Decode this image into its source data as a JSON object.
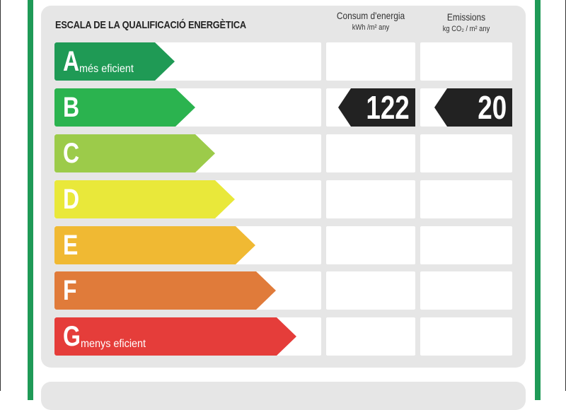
{
  "title": "ESCALA DE LA QUALIFICACIÓ ENERGÈTICA",
  "columns": {
    "energy": {
      "label": "Consum d'energia",
      "unit": "kWh /m² any"
    },
    "emissions": {
      "label": "Emissions",
      "unit": "kg CO₂ / m² any"
    }
  },
  "ratings": [
    {
      "letter": "A",
      "label": "més eficient",
      "color": "#1f9a55"
    },
    {
      "letter": "B",
      "label": "",
      "color": "#2bb34f"
    },
    {
      "letter": "C",
      "label": "",
      "color": "#9ccb4a"
    },
    {
      "letter": "D",
      "label": "",
      "color": "#e9e83a"
    },
    {
      "letter": "E",
      "label": "",
      "color": "#f0b933"
    },
    {
      "letter": "F",
      "label": "",
      "color": "#e07b3a"
    },
    {
      "letter": "G",
      "label": "menys eficient",
      "color": "#e53d3a"
    }
  ],
  "result": {
    "rating": "B",
    "energy": "122",
    "emissions": "20"
  }
}
